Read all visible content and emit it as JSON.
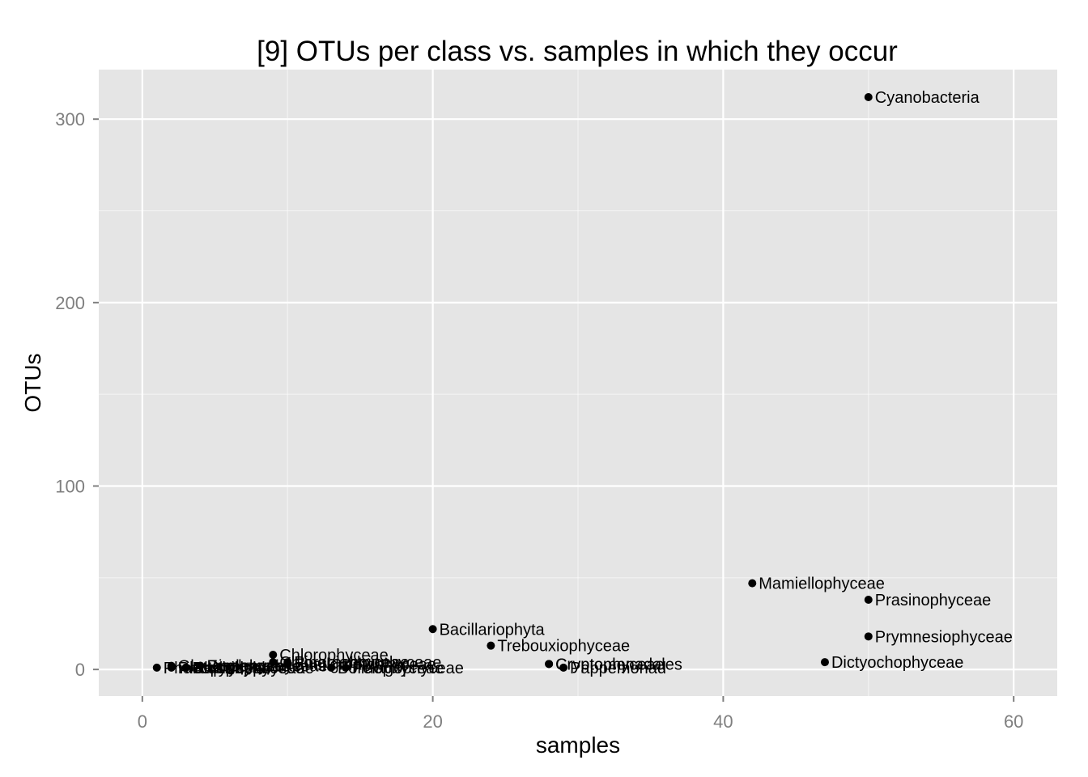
{
  "chart_data": {
    "type": "scatter",
    "title": "[9] OTUs per class vs. samples in which they occur",
    "xlabel": "samples",
    "ylabel": "OTUs",
    "xlim": [
      -3,
      63
    ],
    "ylim": [
      -14.5,
      327
    ],
    "x_ticks": [
      0,
      20,
      40,
      60
    ],
    "y_ticks": [
      0,
      100,
      200,
      300
    ],
    "grid": true,
    "legend": "none",
    "colors": {
      "panel": "#e5e5e5",
      "grid": "#ffffff",
      "point": "#000000",
      "tick": "#7f7f7f"
    },
    "points": [
      {
        "label": "Cyanobacteria",
        "x": 50,
        "y": 312
      },
      {
        "label": "Mamiellophyceae",
        "x": 42,
        "y": 47
      },
      {
        "label": "Prasinophyceae",
        "x": 50,
        "y": 38
      },
      {
        "label": "Prymnesiophyceae",
        "x": 50,
        "y": 18
      },
      {
        "label": "Dictyochophyceae",
        "x": 47,
        "y": 4
      },
      {
        "label": "Bacillariophyta",
        "x": 20,
        "y": 22
      },
      {
        "label": "Trebouxiophyceae",
        "x": 24,
        "y": 13
      },
      {
        "label": "Cryptomenadales",
        "x": 28,
        "y": 3
      },
      {
        "label": "Cryptophyceae",
        "x": 28,
        "y": 3
      },
      {
        "label": "Pappemonad",
        "x": 29,
        "y": 1
      },
      {
        "label": "Chlorophyceae",
        "x": 9,
        "y": 8
      },
      {
        "label": "Chlorarachniophyceae",
        "x": 9,
        "y": 4
      },
      {
        "label": "Pinguiophyceae",
        "x": 10,
        "y": 4
      },
      {
        "label": "Eustigmatophyceae",
        "x": 10,
        "y": 3
      },
      {
        "label": "Bolidophyceae",
        "x": 13,
        "y": 1
      },
      {
        "label": "Pelagophyceae",
        "x": 14,
        "y": 1
      },
      {
        "label": "Dinophyceae",
        "x": 4,
        "y": 2
      },
      {
        "label": "Euglenophyceae",
        "x": 4,
        "y": 2
      },
      {
        "label": "Chrysophyceae",
        "x": 3,
        "y": 1
      },
      {
        "label": "Raphidophyceae",
        "x": 3,
        "y": 1
      },
      {
        "label": "Glaucophyceae",
        "x": 2,
        "y": 2
      },
      {
        "label": "Rhodophyta",
        "x": 2,
        "y": 1
      },
      {
        "label": "Phaeophyceae",
        "x": 1,
        "y": 1
      }
    ]
  }
}
